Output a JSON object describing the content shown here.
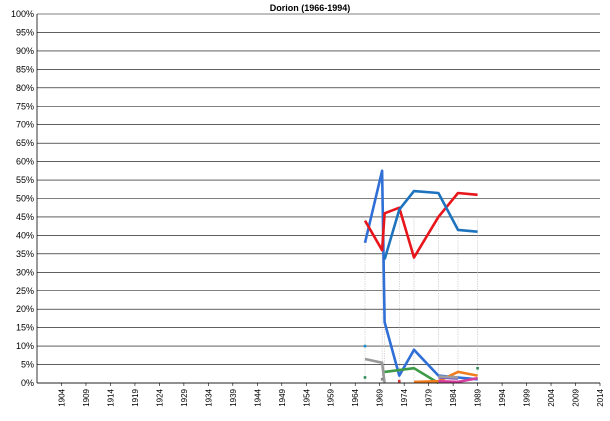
{
  "chart_data": {
    "type": "line",
    "title": "Dorion (1966-1994)",
    "xlabel": "",
    "ylabel": "",
    "xlim": [
      1899,
      2014
    ],
    "ylim": [
      0,
      100
    ],
    "y_ticks": [
      "0%",
      "5%",
      "10%",
      "15%",
      "20%",
      "25%",
      "30%",
      "35%",
      "40%",
      "45%",
      "50%",
      "55%",
      "60%",
      "65%",
      "70%",
      "75%",
      "80%",
      "85%",
      "90%",
      "95%",
      "100%"
    ],
    "x_ticks": [
      "1904",
      "1909",
      "1914",
      "1919",
      "1924",
      "1929",
      "1934",
      "1939",
      "1944",
      "1949",
      "1954",
      "1959",
      "1964",
      "1969",
      "1974",
      "1979",
      "1984",
      "1989",
      "1994",
      "1999",
      "2004",
      "2009",
      "2014"
    ],
    "grid": true,
    "legend": "none",
    "drop_lines_x": [
      1966,
      1969.5,
      1970,
      1973,
      1976,
      1981,
      1985,
      1989
    ],
    "series": [
      {
        "color": "#2f6fd6",
        "x": [
          1966,
          1969.5,
          1970,
          1973,
          1976,
          1981,
          1985,
          1989
        ],
        "y": [
          38,
          57.5,
          16.5,
          2,
          9,
          2,
          1.5,
          1
        ]
      },
      {
        "color": "#e8161b",
        "x": [
          1966,
          1969.5,
          1970,
          1973,
          1976,
          1981,
          1985,
          1989
        ],
        "y": [
          44,
          36,
          46,
          47.5,
          34,
          45,
          51.5,
          51
        ]
      },
      {
        "color": "#1e73be",
        "x": [
          1970,
          1973,
          1976,
          1981,
          1985,
          1989
        ],
        "y": [
          33.5,
          47,
          52,
          51.5,
          41.5,
          41
        ]
      },
      {
        "color": "#999999",
        "x": [
          1966,
          1969.5,
          1970
        ],
        "y": [
          6.5,
          5.5,
          0
        ]
      },
      {
        "color": "#3d9a46",
        "x": [
          1970,
          1973,
          1976,
          1981
        ],
        "y": [
          3,
          3.5,
          4,
          0
        ]
      },
      {
        "color": "#f07c1f",
        "x": [
          1976,
          1981,
          1985,
          1989
        ],
        "y": [
          0.3,
          0.5,
          3,
          2
        ]
      },
      {
        "color": "#d63d9c",
        "x": [
          1981,
          1985,
          1989
        ],
        "y": [
          0.5,
          0.3,
          1.3
        ]
      },
      {
        "color": "#7e57c2",
        "x": [
          1981,
          1985
        ],
        "y": [
          1.5,
          1.2
        ]
      },
      {
        "color": "#9e9e9e",
        "x": [
          1981,
          1985
        ],
        "y": [
          1.8,
          1.5
        ]
      }
    ],
    "markers": [
      {
        "x": 1966,
        "y": 10,
        "color": "#1f8fd0"
      },
      {
        "x": 1966,
        "y": 1.5,
        "color": "#2e8b57"
      },
      {
        "x": 1969.5,
        "y": 1,
        "color": "#888888"
      },
      {
        "x": 1973,
        "y": 0.5,
        "color": "#d32f2f"
      },
      {
        "x": 1989,
        "y": 4,
        "color": "#2e8b57"
      }
    ]
  }
}
